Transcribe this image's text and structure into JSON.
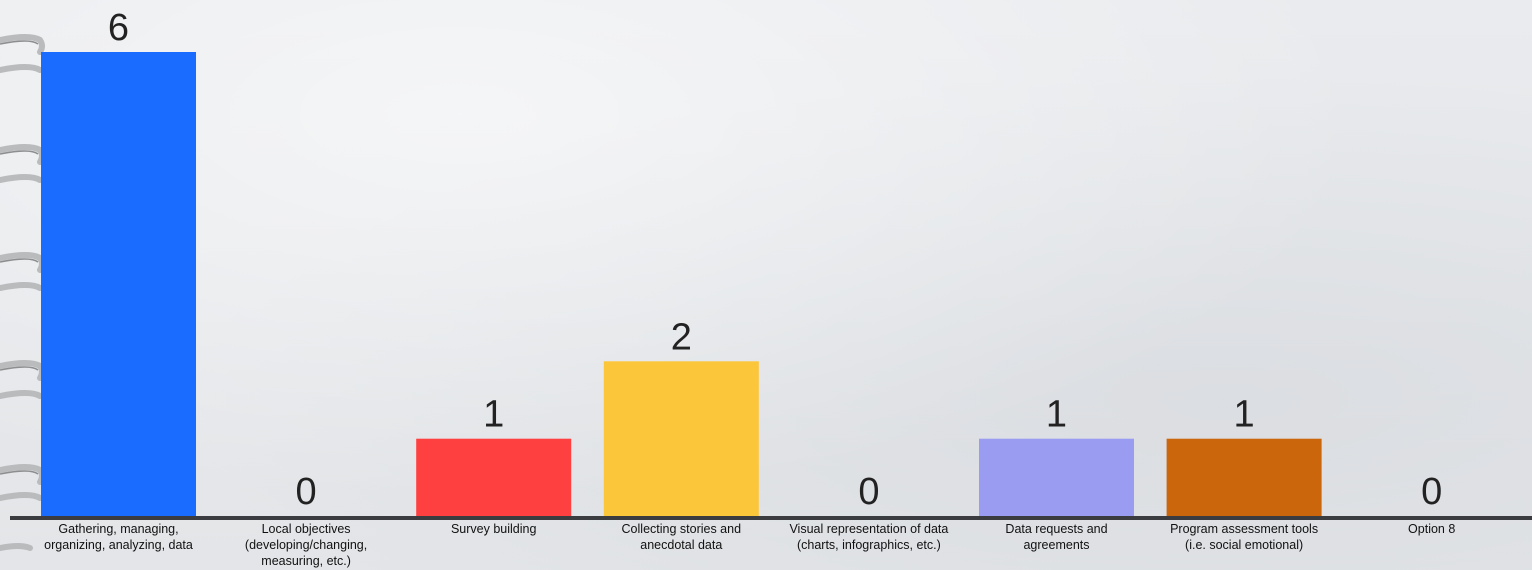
{
  "chart_data": {
    "type": "bar",
    "categories": [
      "Gathering, managing, organizing, analyzing, data",
      "Local objectives (developing/changing, measuring, etc.)",
      "Survey building",
      "Collecting stories and anecdotal data",
      "Visual representation of data (charts, infographics, etc.)",
      "Data requests and agreements",
      "Program assessment tools (i.e. social emotional)",
      "Option 8"
    ],
    "values": [
      6,
      0,
      1,
      2,
      0,
      1,
      1,
      0
    ],
    "colors": [
      "#1a6bff",
      "#1a6bff",
      "#ff4040",
      "#fcc63a",
      "#1a6bff",
      "#9a9cf2",
      "#cc660d",
      "#1a6bff"
    ],
    "ylim": [
      0,
      6
    ],
    "grid": false,
    "legend": "none",
    "title": "",
    "xlabel": "",
    "ylabel": ""
  }
}
